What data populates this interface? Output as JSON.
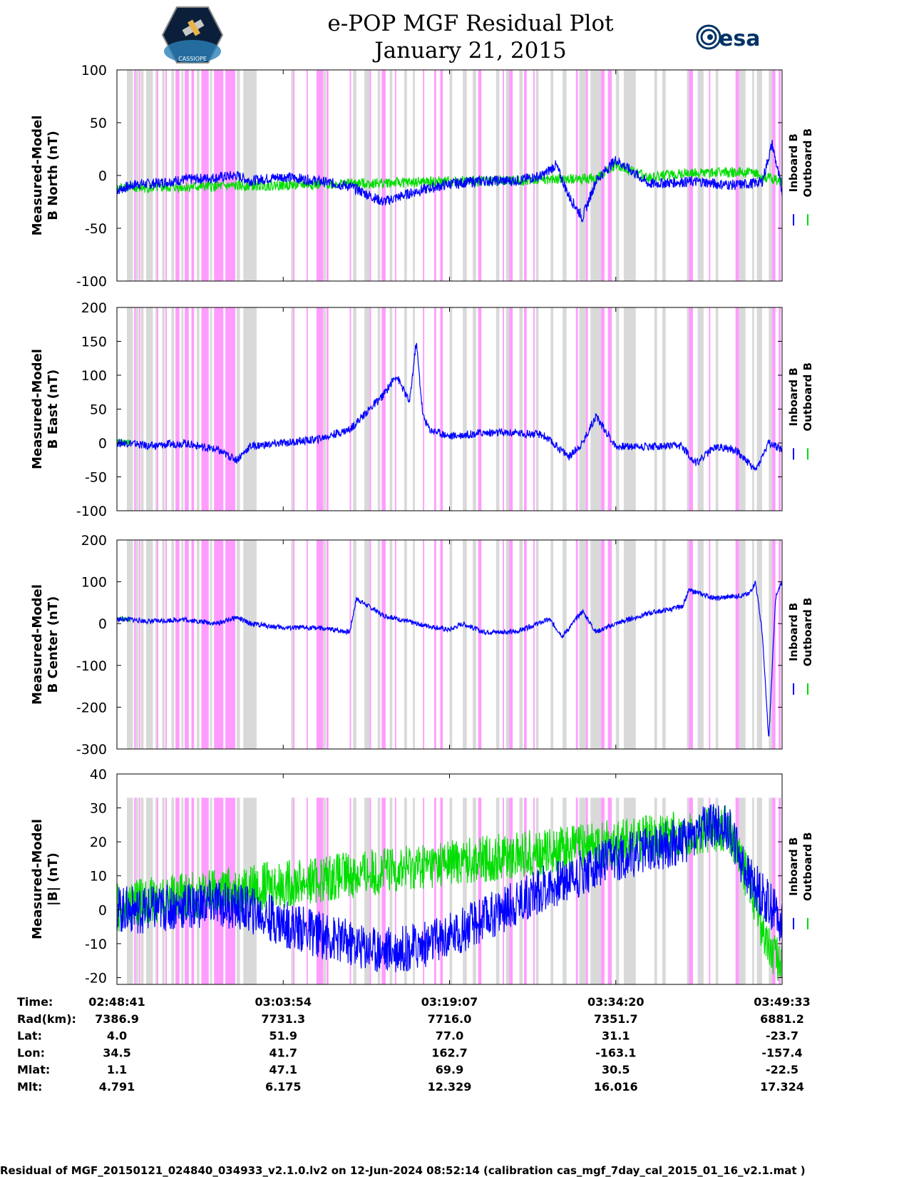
{
  "header": {
    "title": "e-POP MGF Residual Plot",
    "date": "January 21, 2015",
    "left_logo": "CASSIOPE",
    "right_logo": "esa"
  },
  "colors": {
    "inboard": "#0000ff",
    "outboard": "#00dd00",
    "gray_band": "#d9d9d9",
    "pink_band": "#ff9cff"
  },
  "chart_data": [
    {
      "type": "line",
      "title": "",
      "ylabel": [
        "Measured-Model",
        "B North (nT)"
      ],
      "ylim": [
        -100,
        100
      ],
      "yticks": [
        100,
        50,
        0,
        -50,
        -100
      ],
      "legend": [
        "Inboard B",
        "Outboard B"
      ],
      "legend_position": "right",
      "series": [
        {
          "name": "Inboard B",
          "x": [
            0.0,
            0.01,
            0.02,
            0.03,
            0.05,
            0.1,
            0.15,
            0.18,
            0.2,
            0.25,
            0.3,
            0.35,
            0.4,
            0.45,
            0.5,
            0.55,
            0.6,
            0.64,
            0.66,
            0.68,
            0.7,
            0.72,
            0.75,
            0.8,
            0.85,
            0.88,
            0.9,
            0.93,
            0.95,
            0.97,
            0.985,
            1.0
          ],
          "y": [
            -14,
            -12,
            -10,
            -8,
            -8,
            -4,
            -2,
            0,
            -5,
            -1,
            -5,
            -10,
            -25,
            -15,
            -8,
            -5,
            -5,
            0,
            10,
            -20,
            -40,
            -5,
            15,
            -8,
            -6,
            -6,
            -8,
            -9,
            -8,
            -6,
            30,
            -15
          ]
        },
        {
          "name": "Outboard B",
          "x": [
            0.0,
            0.01,
            0.02,
            0.72,
            0.75,
            0.8,
            0.85,
            0.9,
            0.95,
            1.0
          ],
          "y": [
            -14,
            -10,
            -12,
            -3,
            10,
            -2,
            2,
            3,
            3,
            -6
          ]
        }
      ]
    },
    {
      "type": "line",
      "title": "",
      "ylabel": [
        "Measured-Model",
        "B East (nT)"
      ],
      "ylim": [
        -100,
        200
      ],
      "yticks": [
        200,
        150,
        100,
        50,
        0,
        -50,
        -100
      ],
      "legend": [
        "Inboard B",
        "Outboard B"
      ],
      "legend_position": "right",
      "series": [
        {
          "name": "Inboard B",
          "x": [
            0.0,
            0.02,
            0.05,
            0.1,
            0.15,
            0.18,
            0.2,
            0.25,
            0.3,
            0.35,
            0.38,
            0.4,
            0.42,
            0.44,
            0.45,
            0.46,
            0.47,
            0.5,
            0.55,
            0.6,
            0.64,
            0.68,
            0.7,
            0.72,
            0.75,
            0.8,
            0.85,
            0.87,
            0.9,
            0.93,
            0.96,
            0.98,
            1.0
          ],
          "y": [
            0,
            0,
            -5,
            0,
            -10,
            -25,
            -5,
            0,
            5,
            20,
            50,
            70,
            100,
            60,
            150,
            40,
            20,
            10,
            15,
            15,
            12,
            -20,
            0,
            40,
            -5,
            -5,
            -5,
            -30,
            -5,
            -10,
            -40,
            0,
            -10
          ]
        },
        {
          "name": "Outboard B",
          "x": [
            0.0,
            0.01,
            0.02
          ],
          "y": [
            2,
            0,
            1
          ]
        }
      ]
    },
    {
      "type": "line",
      "title": "",
      "ylabel": [
        "Measured-Model",
        "B Center (nT)"
      ],
      "ylim": [
        -300,
        200
      ],
      "yticks": [
        200,
        100,
        0,
        -100,
        -200,
        -300
      ],
      "legend": [
        "Inboard B",
        "Outboard B"
      ],
      "legend_position": "right",
      "series": [
        {
          "name": "Inboard B",
          "x": [
            0.0,
            0.02,
            0.05,
            0.1,
            0.15,
            0.18,
            0.2,
            0.25,
            0.3,
            0.35,
            0.36,
            0.4,
            0.45,
            0.5,
            0.52,
            0.55,
            0.6,
            0.65,
            0.67,
            0.7,
            0.72,
            0.75,
            0.8,
            0.85,
            0.86,
            0.9,
            0.95,
            0.96,
            0.97,
            0.98,
            0.99,
            1.0
          ],
          "y": [
            10,
            10,
            5,
            10,
            0,
            15,
            0,
            -10,
            -10,
            -20,
            60,
            20,
            0,
            -15,
            0,
            -20,
            -20,
            10,
            -30,
            30,
            -20,
            0,
            25,
            40,
            80,
            60,
            70,
            100,
            -20,
            -280,
            60,
            100
          ]
        },
        {
          "name": "Outboard B",
          "x": [
            0.0,
            0.01,
            0.02
          ],
          "y": [
            10,
            12,
            8
          ]
        }
      ]
    },
    {
      "type": "line",
      "title": "",
      "ylabel": [
        "Measured-Model",
        "|B| (nT)"
      ],
      "ylim": [
        -22,
        40
      ],
      "yticks": [
        40,
        30,
        20,
        10,
        0,
        -10,
        -20
      ],
      "legend": [
        "Inboard B",
        "Outboard B"
      ],
      "legend_position": "right",
      "series": [
        {
          "name": "Inboard B",
          "x": [
            0.0,
            0.05,
            0.1,
            0.15,
            0.2,
            0.25,
            0.3,
            0.35,
            0.4,
            0.45,
            0.5,
            0.55,
            0.6,
            0.65,
            0.7,
            0.75,
            0.8,
            0.85,
            0.88,
            0.9,
            0.92,
            0.95,
            1.0
          ],
          "y": [
            0,
            0,
            1,
            2,
            0,
            -4,
            -7,
            -10,
            -12,
            -11,
            -8,
            -3,
            2,
            7,
            11,
            15,
            18,
            20,
            24,
            25,
            24,
            9,
            -3
          ]
        },
        {
          "name": "Outboard B",
          "x": [
            0.0,
            0.01,
            0.02,
            0.92,
            0.95,
            0.98,
            1.0
          ],
          "y": [
            1,
            -2,
            2,
            24,
            8,
            -12,
            -16
          ]
        }
      ]
    }
  ],
  "xaxis": {
    "row_labels": [
      "Time:",
      "Rad(km):",
      "Lat:",
      "Lon:",
      "Mlat:",
      "Mlt:"
    ],
    "columns": [
      [
        "02:48:41",
        "7386.9",
        "4.0",
        "34.5",
        "1.1",
        "4.791"
      ],
      [
        "03:03:54",
        "7731.3",
        "51.9",
        "41.7",
        "47.1",
        "6.175"
      ],
      [
        "03:19:07",
        "7716.0",
        "77.0",
        "162.7",
        "69.9",
        "12.329"
      ],
      [
        "03:34:20",
        "7351.7",
        "31.1",
        "-163.1",
        "30.5",
        "16.016"
      ],
      [
        "03:49:33",
        "6881.2",
        "-23.7",
        "-157.4",
        "-22.5",
        "17.324"
      ]
    ]
  },
  "bands": {
    "gray": [
      [
        0.015,
        0.024
      ],
      [
        0.028,
        0.032
      ],
      [
        0.036,
        0.04
      ],
      [
        0.044,
        0.054
      ],
      [
        0.058,
        0.062
      ],
      [
        0.068,
        0.072
      ],
      [
        0.082,
        0.086
      ],
      [
        0.097,
        0.1
      ],
      [
        0.12,
        0.124
      ],
      [
        0.14,
        0.143
      ],
      [
        0.18,
        0.185
      ],
      [
        0.19,
        0.21
      ],
      [
        0.262,
        0.265
      ],
      [
        0.31,
        0.314
      ],
      [
        0.355,
        0.36
      ],
      [
        0.372,
        0.38
      ],
      [
        0.392,
        0.396
      ],
      [
        0.41,
        0.414
      ],
      [
        0.432,
        0.436
      ],
      [
        0.445,
        0.448
      ],
      [
        0.5,
        0.504
      ],
      [
        0.52,
        0.526
      ],
      [
        0.535,
        0.54
      ],
      [
        0.57,
        0.575
      ],
      [
        0.585,
        0.59
      ],
      [
        0.605,
        0.61
      ],
      [
        0.63,
        0.634
      ],
      [
        0.652,
        0.656
      ],
      [
        0.67,
        0.676
      ],
      [
        0.695,
        0.705
      ],
      [
        0.712,
        0.73
      ],
      [
        0.75,
        0.755
      ],
      [
        0.762,
        0.78
      ],
      [
        0.808,
        0.812
      ],
      [
        0.82,
        0.825
      ],
      [
        0.857,
        0.86
      ],
      [
        0.873,
        0.882
      ],
      [
        0.9,
        0.904
      ],
      [
        0.935,
        0.945
      ],
      [
        0.955,
        0.958
      ],
      [
        0.962,
        0.97
      ],
      [
        0.98,
        0.985
      ]
    ],
    "pink": [
      [
        0.026,
        0.028
      ],
      [
        0.033,
        0.035
      ],
      [
        0.06,
        0.062
      ],
      [
        0.073,
        0.075
      ],
      [
        0.088,
        0.094
      ],
      [
        0.102,
        0.108
      ],
      [
        0.112,
        0.116
      ],
      [
        0.127,
        0.138
      ],
      [
        0.146,
        0.16
      ],
      [
        0.163,
        0.178
      ],
      [
        0.265,
        0.267
      ],
      [
        0.285,
        0.287
      ],
      [
        0.3,
        0.31
      ],
      [
        0.315,
        0.318
      ],
      [
        0.35,
        0.352
      ],
      [
        0.38,
        0.382
      ],
      [
        0.398,
        0.404
      ],
      [
        0.418,
        0.42
      ],
      [
        0.46,
        0.462
      ],
      [
        0.477,
        0.48
      ],
      [
        0.486,
        0.49
      ],
      [
        0.543,
        0.548
      ],
      [
        0.58,
        0.582
      ],
      [
        0.59,
        0.595
      ],
      [
        0.612,
        0.616
      ],
      [
        0.626,
        0.628
      ],
      [
        0.69,
        0.693
      ],
      [
        0.705,
        0.708
      ],
      [
        0.728,
        0.733
      ],
      [
        0.738,
        0.744
      ],
      [
        0.86,
        0.866
      ],
      [
        0.89,
        0.892
      ],
      [
        0.93,
        0.935
      ],
      [
        0.985,
        0.99
      ],
      [
        0.995,
        0.998
      ]
    ]
  },
  "footer": {
    "text": "Residual of MGF_20150121_024840_034933_v2.1.0.lv2 on 12-Jun-2024 08:52:14 (calibration cas_mgf_7day_cal_2015_01_16_v2.1.mat )"
  }
}
